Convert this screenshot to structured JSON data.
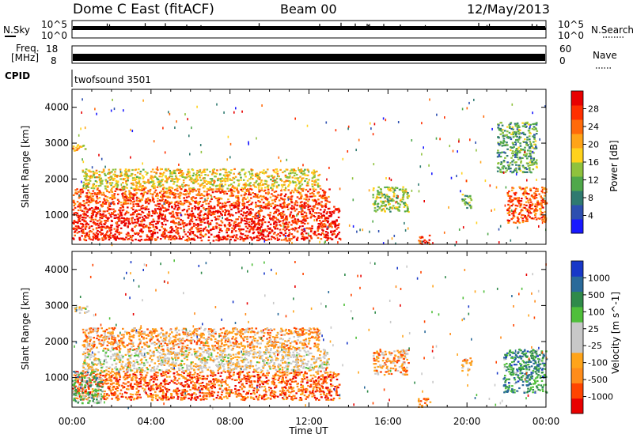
{
  "header": {
    "station": "Dome C East (fitACF)",
    "beam": "Beam 00",
    "date": "12/May/2013"
  },
  "strips": {
    "nsky_label": "N.Sky",
    "nsky_ticks": [
      "10^5",
      "10^0"
    ],
    "nsearch_label": "N.Search",
    "nsearch_ticks": [
      "10^5",
      "10^0"
    ],
    "freq_label_1": "Freq.",
    "freq_label_2": "[MHz]",
    "freq_ticks": [
      "18",
      "8"
    ],
    "nave_label": "Nave",
    "nave_ticks": [
      "60",
      "0"
    ],
    "cpid_label": "CPID",
    "cpid_value": "twofsound 3501"
  },
  "axes": {
    "ylabel": "Slant Range [km]",
    "xlabel": "Time UT",
    "x_ticks": [
      "00:00",
      "04:00",
      "08:00",
      "12:00",
      "16:00",
      "20:00",
      "00:00"
    ],
    "x_range_hours": [
      0,
      24
    ],
    "y_ticks": [
      "1000",
      "2000",
      "3000",
      "4000"
    ],
    "y_range_km": [
      180,
      4500
    ]
  },
  "chart_data": [
    {
      "type": "heatmap",
      "name": "power",
      "colorbar_label": "Power [dB]",
      "colorbar_ticks": [
        "4",
        "8",
        "12",
        "16",
        "20",
        "24",
        "28"
      ],
      "colorbar_range": [
        0,
        30
      ],
      "colors": [
        "#1818ff",
        "#2d4fb0",
        "#2f7a70",
        "#4fa84a",
        "#8fc23d",
        "#ffd21c",
        "#ffa418",
        "#ff6a0a",
        "#ff2f00",
        "#e80000"
      ],
      "regions": [
        {
          "t": [
            0.0,
            13.5
          ],
          "r": [
            300,
            1300
          ],
          "level": 0.9
        },
        {
          "t": [
            0.0,
            13.0
          ],
          "r": [
            1300,
            1750
          ],
          "level": 0.78
        },
        {
          "t": [
            0.5,
            12.5
          ],
          "r": [
            1750,
            2300
          ],
          "level": 0.55
        },
        {
          "t": [
            0.0,
            0.8
          ],
          "r": [
            2800,
            3000
          ],
          "level": 0.62
        },
        {
          "t": [
            17.5,
            18.1
          ],
          "r": [
            200,
            450
          ],
          "level": 0.85
        },
        {
          "t": [
            15.2,
            17.0
          ],
          "r": [
            1100,
            1800
          ],
          "level": 0.45
        },
        {
          "t": [
            19.7,
            20.2
          ],
          "r": [
            1200,
            1600
          ],
          "level": 0.4
        },
        {
          "t": [
            22.0,
            24.0
          ],
          "r": [
            800,
            1800
          ],
          "level": 0.8
        },
        {
          "t": [
            21.5,
            23.5
          ],
          "r": [
            2200,
            3600
          ],
          "level": 0.35
        }
      ]
    },
    {
      "type": "heatmap",
      "name": "velocity",
      "colorbar_label": "Velocity [m s^-1]",
      "colorbar_ticks": [
        "-1000",
        "-500",
        "-100",
        "-25",
        "25",
        "100",
        "500",
        "1000"
      ],
      "colorbar_range": [
        -1200,
        1200
      ],
      "colors": [
        "#e80000",
        "#ff4400",
        "#ff8c1a",
        "#ffa41a",
        "#c8c8c8",
        "#c8c8c8",
        "#4fbf3a",
        "#2f8a4a",
        "#2a6a9a",
        "#1838c8"
      ],
      "regions": [
        {
          "t": [
            0.0,
            13.5
          ],
          "r": [
            400,
            1200
          ],
          "level": 0.2
        },
        {
          "t": [
            0.0,
            1.5
          ],
          "r": [
            300,
            1200
          ],
          "level": 0.65
        },
        {
          "t": [
            0.5,
            13.0
          ],
          "r": [
            1200,
            1800
          ],
          "level": 0.46
        },
        {
          "t": [
            0.5,
            12.5
          ],
          "r": [
            1800,
            2400
          ],
          "level": 0.3
        },
        {
          "t": [
            0.0,
            0.8
          ],
          "r": [
            2800,
            3000
          ],
          "level": 0.46
        },
        {
          "t": [
            17.5,
            18.1
          ],
          "r": [
            200,
            450
          ],
          "level": 0.25
        },
        {
          "t": [
            15.2,
            17.0
          ],
          "r": [
            1100,
            1800
          ],
          "level": 0.3
        },
        {
          "t": [
            19.7,
            20.2
          ],
          "r": [
            1200,
            1600
          ],
          "level": 0.35
        },
        {
          "t": [
            21.8,
            24.0
          ],
          "r": [
            600,
            1800
          ],
          "level": 0.75
        }
      ]
    }
  ]
}
